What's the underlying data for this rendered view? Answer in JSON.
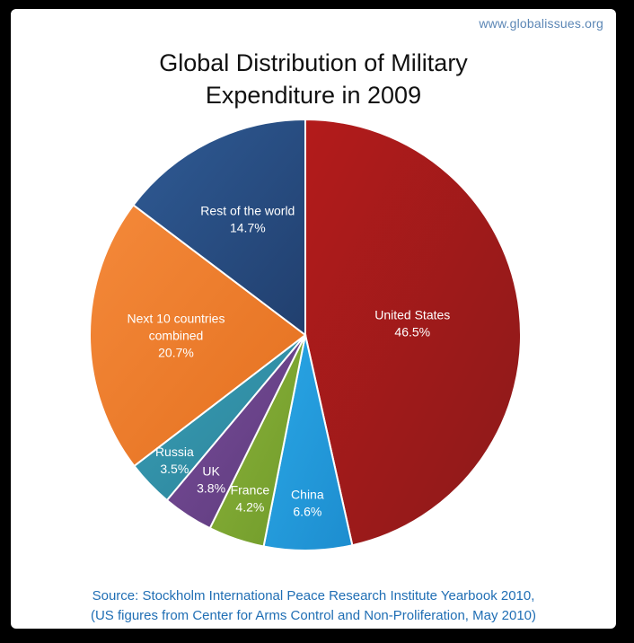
{
  "watermark": "www.globalissues.org",
  "title_line1": "Global Distribution of Military",
  "title_line2": "Expenditure in 2009",
  "source_line1": "Source: Stockholm International Peace Research Institute Yearbook 2010,",
  "source_line2": "(US figures from Center for Arms Control and Non-Proliferation, May 2010)",
  "chart_data": {
    "type": "pie",
    "title": "Global Distribution of Military Expenditure in 2009",
    "start": "12 o'clock, clockwise",
    "slices": [
      {
        "label_lines": [
          "United States",
          "46.5%"
        ],
        "value": 46.5,
        "color": "#b31b1b",
        "color_dark": "#8c1a1a"
      },
      {
        "label_lines": [
          "China",
          "6.6%"
        ],
        "value": 6.6,
        "color": "#2aa7e6",
        "color_dark": "#1d8dcf"
      },
      {
        "label_lines": [
          "France",
          "4.2%"
        ],
        "value": 4.2,
        "color": "#8cb33a",
        "color_dark": "#6f9a2a"
      },
      {
        "label_lines": [
          "UK",
          "3.8%"
        ],
        "value": 3.8,
        "color": "#7a4d9b",
        "color_dark": "#5b3a7a"
      },
      {
        "label_lines": [
          "Russia",
          "3.5%"
        ],
        "value": 3.5,
        "color": "#3a9fb8",
        "color_dark": "#2a8196"
      },
      {
        "label_lines": [
          "Next 10 countries",
          "combined",
          "20.7%"
        ],
        "value": 20.7,
        "color": "#f4893a",
        "color_dark": "#e4701f"
      },
      {
        "label_lines": [
          "Rest of the world",
          "14.7%"
        ],
        "value": 14.7,
        "color": "#2f5b95",
        "color_dark": "#213f6e"
      }
    ]
  }
}
